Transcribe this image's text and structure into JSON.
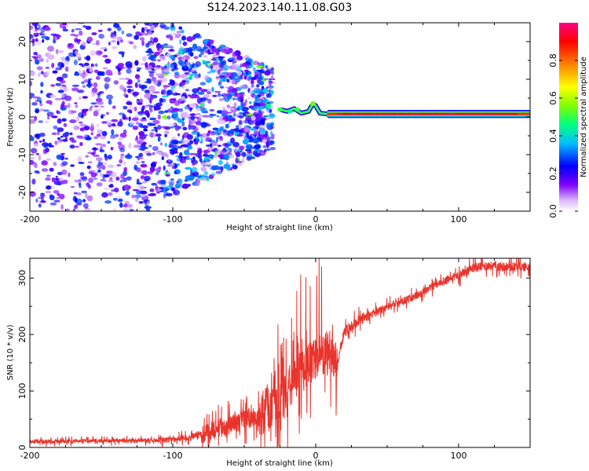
{
  "title": "S124.2023.140.11.08.G03",
  "chart_data": [
    {
      "type": "heatmap",
      "title": "S124.2023.140.11.08.G03",
      "xlabel": "Height of straight line (km)",
      "ylabel": "Frequency (Hz)",
      "xlim": [
        -200,
        150
      ],
      "ylim": [
        -25,
        25
      ],
      "xticks": [
        -200,
        -100,
        0,
        100
      ],
      "yticks": [
        -20,
        -10,
        0,
        10,
        20
      ],
      "colorbar": {
        "label": "Normalized spectral amplitude",
        "range": [
          0,
          1
        ],
        "ticks": [
          0.0,
          0.2,
          0.4,
          0.6,
          0.8
        ],
        "colors": [
          "#ffffff",
          "#7f00ff",
          "#0000ff",
          "#00bfff",
          "#00ff80",
          "#80ff00",
          "#ffff00",
          "#ff8000",
          "#ff0000",
          "#ff0080"
        ]
      },
      "features": {
        "noise_region_km": [
          -200,
          -30
        ],
        "noise_frequency_range_hz": [
          -25,
          25
        ],
        "noise_peak_amplitude": 0.25,
        "tone_start_km": -25,
        "tone_frequency_hz": 0.8,
        "tone_peak_amplitude": 1.0
      }
    },
    {
      "type": "line",
      "xlabel": "Height of straight line (km)",
      "ylabel": "SNR (10 * v/v)",
      "xlim": [
        -200,
        150
      ],
      "ylim": [
        0,
        335
      ],
      "xticks": [
        -200,
        -100,
        0,
        100
      ],
      "yticks": [
        0,
        100,
        200,
        300
      ],
      "color": "#e8342c",
      "x": [
        -200,
        -150,
        -120,
        -100,
        -90,
        -80,
        -70,
        -60,
        -50,
        -40,
        -30,
        -20,
        -10,
        0,
        10,
        15,
        20,
        30,
        40,
        50,
        60,
        70,
        80,
        90,
        100,
        110,
        120,
        130,
        140,
        150
      ],
      "y": [
        10,
        12,
        12,
        14,
        18,
        25,
        32,
        40,
        48,
        58,
        70,
        95,
        130,
        160,
        170,
        150,
        205,
        225,
        238,
        248,
        258,
        268,
        282,
        295,
        305,
        318,
        322,
        320,
        320,
        320
      ]
    }
  ]
}
